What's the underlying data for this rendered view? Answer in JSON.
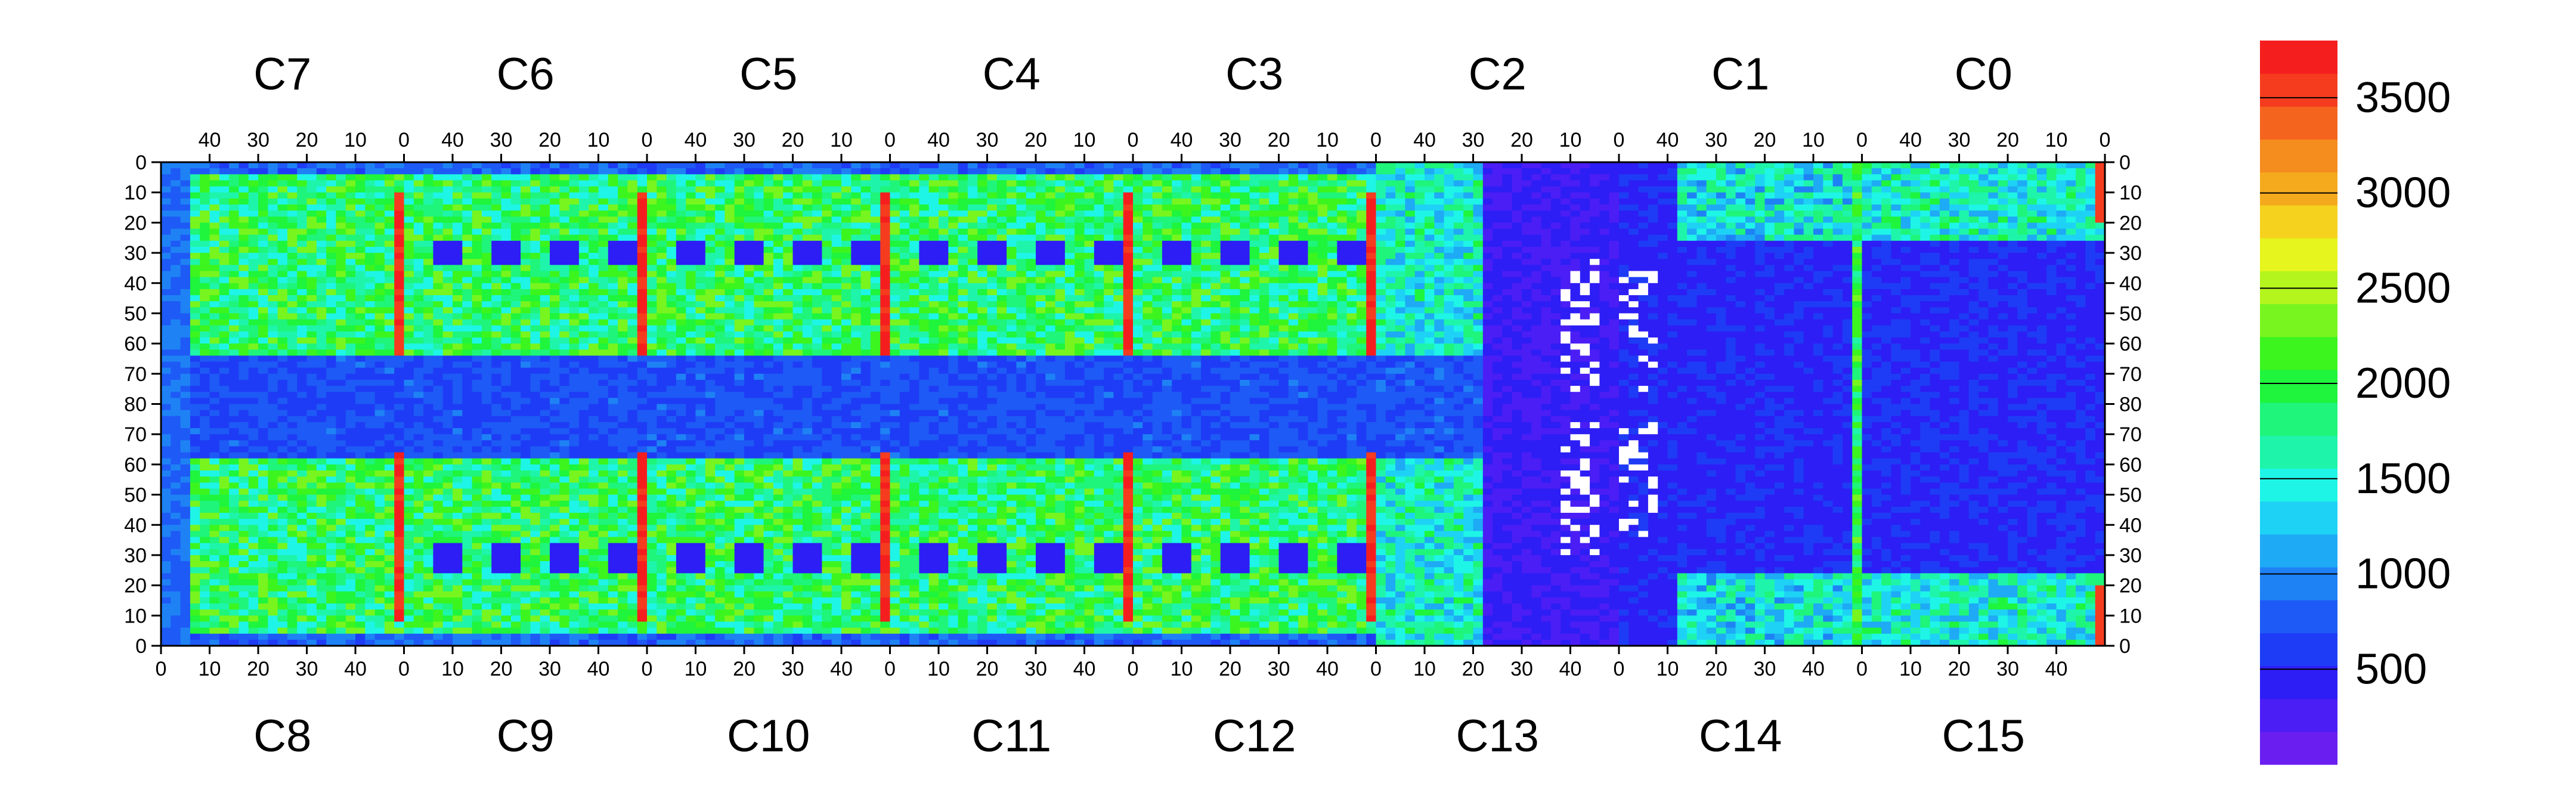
{
  "chart_data": {
    "type": "heatmap",
    "description_of_layout": "",
    "top_chip_labels": [
      "C7",
      "C6",
      "C5",
      "C4",
      "C3",
      "C2",
      "C1",
      "C0"
    ],
    "bottom_chip_labels": [
      "C8",
      "C9",
      "C10",
      "C11",
      "C12",
      "C13",
      "C14",
      "C15"
    ],
    "top_x_ticks": [
      "40",
      "30",
      "20",
      "10",
      "0"
    ],
    "bottom_x_ticks": [
      "0",
      "10",
      "20",
      "30",
      "40"
    ],
    "y_ticks_top_half": [
      "0",
      "10",
      "20",
      "30",
      "40",
      "50",
      "60",
      "70",
      "80"
    ],
    "y_ticks_bottom_half": [
      "70",
      "60",
      "50",
      "40",
      "30",
      "20",
      "10",
      "0"
    ],
    "colorbar": {
      "min": 0,
      "max": 3800,
      "ticks": [
        500,
        1000,
        1500,
        2000,
        2500,
        3000,
        3500
      ],
      "tick_labels": [
        "500",
        "1000",
        "1500",
        "2000",
        "2500",
        "3000",
        "3500"
      ],
      "palette": [
        "#6a1ef0",
        "#4b1ef5",
        "#2d1ef5",
        "#1e3cf5",
        "#1e5af5",
        "#1e82f5",
        "#1eaaf5",
        "#1ed2f5",
        "#1ef5e6",
        "#1ef5aa",
        "#1ef57a",
        "#1ef53c",
        "#3cf51e",
        "#78f51e",
        "#b4f51e",
        "#e6f51e",
        "#f5d21e",
        "#f5aa1e",
        "#f58c1e",
        "#f5641e",
        "#f53c1e",
        "#f51e1e"
      ]
    },
    "regions": [
      {
        "name": "chips C7–C14 sensor area",
        "level": "1500–2700 (green/cyan, mixed)"
      },
      {
        "name": "horizontal center band rows 65–80",
        "level": "400–900 (blue)"
      },
      {
        "name": "chip C13/C14 left column region",
        "level": "~100–300 (violet)"
      },
      {
        "name": "chip C0/C1 right region",
        "level": "~200–500 (violet/blue)"
      },
      {
        "name": "column 0 edge stripes",
        "level": "~3500–3800 (red)"
      },
      {
        "name": "dead pixels scattered near C13/C14 boundary",
        "level": "0 (white)"
      }
    ]
  }
}
